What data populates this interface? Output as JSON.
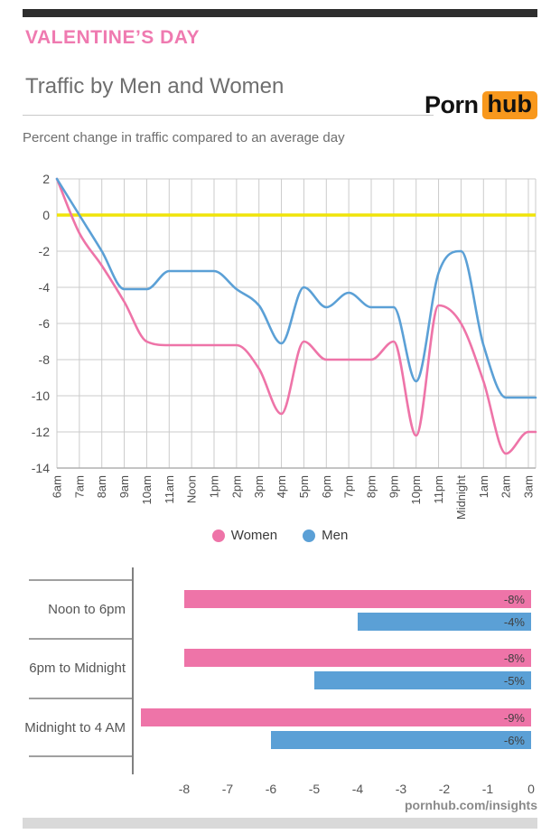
{
  "header": {
    "eyebrow": "VALENTINE’S DAY",
    "title": "Traffic by Men and Women",
    "subtitle": "Percent change in traffic compared to an average day",
    "logo": {
      "part1": "Porn",
      "part2": "hub"
    }
  },
  "colors": {
    "women": "#ee74a8",
    "men": "#5ba0d6",
    "zero_line": "#f0e40a",
    "grid": "#cbcbcb",
    "axis_text": "#4d4d4d",
    "bar_label": "#3f3f3f",
    "heading_pink": "#ef7ab0",
    "logo_orange": "#f8981d"
  },
  "legend": [
    {
      "label": "Women",
      "color": "#ee74a8"
    },
    {
      "label": "Men",
      "color": "#5ba0d6"
    }
  ],
  "chart_data": [
    {
      "type": "line",
      "title": "Percent change in traffic compared to an average day",
      "x": [
        "6am",
        "7am",
        "8am",
        "9am",
        "10am",
        "11am",
        "Noon",
        "1pm",
        "2pm",
        "3pm",
        "4pm",
        "5pm",
        "6pm",
        "7pm",
        "8pm",
        "9pm",
        "10pm",
        "11pm",
        "Midnight",
        "1am",
        "2am",
        "3am"
      ],
      "series": [
        {
          "name": "Women",
          "color": "#ee74a8",
          "values": [
            2,
            -1,
            -2.8,
            -4.8,
            -7,
            -7.2,
            -7.2,
            -7.2,
            -7.2,
            -8.5,
            -11,
            -7,
            -8,
            -8,
            -8,
            -7,
            -12.2,
            -5,
            -6,
            -9.2,
            -13.2,
            -12
          ]
        },
        {
          "name": "Men",
          "color": "#5ba0d6",
          "values": [
            2,
            0,
            -2,
            -4.1,
            -4.1,
            -3.1,
            -3.1,
            -3.1,
            -4.1,
            -5,
            -7.1,
            -4,
            -5.1,
            -4.3,
            -5.1,
            -5.1,
            -9.2,
            -3.2,
            -2,
            -7.2,
            -10.1,
            -10.1
          ]
        }
      ],
      "ylim": [
        -14,
        2
      ],
      "yticks": [
        2,
        0,
        -2,
        -4,
        -6,
        -8,
        -10,
        -12,
        -14
      ],
      "grid": true,
      "zero_line": 0,
      "legend_position": "bottom"
    },
    {
      "type": "bar",
      "orientation": "horizontal",
      "categories": [
        "Noon to 6pm",
        "6pm to Midnight",
        "Midnight to 4 AM"
      ],
      "series": [
        {
          "name": "Women",
          "color": "#ee74a8",
          "values": [
            -8,
            -8,
            -9
          ],
          "labels": [
            "-8%",
            "-8%",
            "-9%"
          ]
        },
        {
          "name": "Men",
          "color": "#5ba0d6",
          "values": [
            -4,
            -5,
            -6
          ],
          "labels": [
            "-4%",
            "-5%",
            "-6%"
          ]
        }
      ],
      "xticks": [
        -8,
        -7,
        -6,
        -5,
        -4,
        -3,
        -2,
        -1,
        0
      ],
      "xlim": [
        -9.2,
        0
      ]
    }
  ],
  "footer": {
    "site": "pornhub.com/insights"
  }
}
